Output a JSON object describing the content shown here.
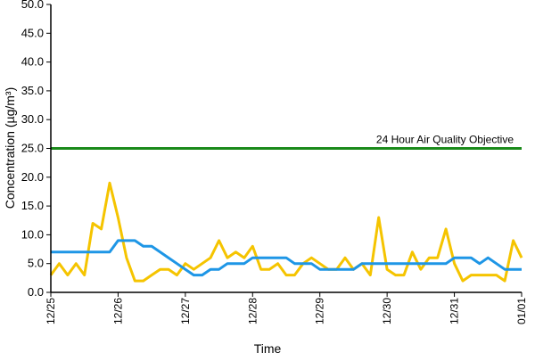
{
  "chart_data": {
    "type": "line",
    "title": "",
    "xlabel": "Time",
    "ylabel": "Concentration (µg/m³)",
    "ylim": [
      0,
      50
    ],
    "yticks": [
      "0.0",
      "5.0",
      "10.0",
      "15.0",
      "20.0",
      "25.0",
      "30.0",
      "35.0",
      "40.0",
      "45.0",
      "50.0"
    ],
    "xticks": [
      "12/25",
      "12/26",
      "12/27",
      "12/28",
      "12/29",
      "12/30",
      "12/31",
      "01/01"
    ],
    "grid": false,
    "x": [
      "12/25 00:00",
      "12/25 03:00",
      "12/25 06:00",
      "12/25 09:00",
      "12/25 12:00",
      "12/25 15:00",
      "12/25 18:00",
      "12/25 21:00",
      "12/26 00:00",
      "12/26 03:00",
      "12/26 06:00",
      "12/26 09:00",
      "12/26 12:00",
      "12/26 15:00",
      "12/26 18:00",
      "12/26 21:00",
      "12/27 00:00",
      "12/27 03:00",
      "12/27 06:00",
      "12/27 09:00",
      "12/27 12:00",
      "12/27 15:00",
      "12/27 18:00",
      "12/27 21:00",
      "12/28 00:00",
      "12/28 03:00",
      "12/28 06:00",
      "12/28 09:00",
      "12/28 12:00",
      "12/28 15:00",
      "12/28 18:00",
      "12/28 21:00",
      "12/29 00:00",
      "12/29 03:00",
      "12/29 06:00",
      "12/29 09:00",
      "12/29 12:00",
      "12/29 15:00",
      "12/29 18:00",
      "12/29 21:00",
      "12/30 00:00",
      "12/30 03:00",
      "12/30 06:00",
      "12/30 09:00",
      "12/30 12:00",
      "12/30 15:00",
      "12/30 18:00",
      "12/30 21:00",
      "12/31 00:00",
      "12/31 03:00",
      "12/31 06:00",
      "12/31 09:00",
      "12/31 12:00",
      "12/31 15:00",
      "12/31 18:00",
      "12/31 21:00",
      "01/01 00:00"
    ],
    "series": [
      {
        "color": "#f5c400",
        "values": [
          3,
          5,
          3,
          5,
          3,
          12,
          11,
          19,
          13,
          6,
          2,
          2,
          3,
          4,
          4,
          3,
          5,
          4,
          5,
          6,
          9,
          6,
          7,
          6,
          8,
          4,
          4,
          5,
          3,
          3,
          5,
          6,
          5,
          4,
          4,
          6,
          4,
          5,
          3,
          13,
          4,
          3,
          3,
          7,
          4,
          6,
          6,
          11,
          5,
          2,
          3,
          3,
          3,
          3,
          2,
          9,
          6
        ]
      },
      {
        "color": "#1e96e6",
        "values": [
          7,
          7,
          7,
          7,
          7,
          7,
          7,
          7,
          9,
          9,
          9,
          8,
          8,
          7,
          6,
          5,
          4,
          3,
          3,
          4,
          4,
          5,
          5,
          5,
          6,
          6,
          6,
          6,
          6,
          5,
          5,
          5,
          4,
          4,
          4,
          4,
          4,
          5,
          5,
          5,
          5,
          5,
          5,
          5,
          5,
          5,
          5,
          5,
          6,
          6,
          6,
          5,
          6,
          5,
          4,
          4,
          4
        ]
      }
    ],
    "reference_line": {
      "value": 25,
      "label": "24 Hour Air Quality Objective",
      "color": "#1a8a1a"
    }
  }
}
